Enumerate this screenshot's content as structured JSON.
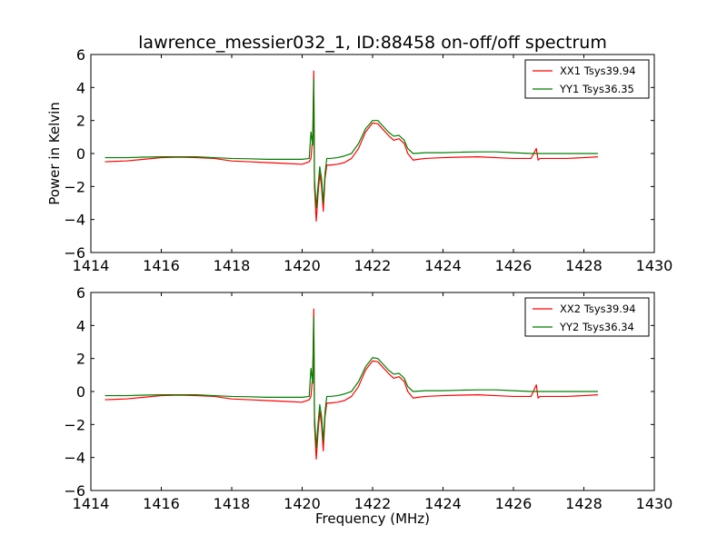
{
  "chart_data": [
    {
      "type": "line",
      "title": "lawrence_messier032_1, ID:88458 on-off/off spectrum",
      "xlabel": "",
      "ylabel": "Power in Kelvin",
      "xlim": [
        1414,
        1430
      ],
      "ylim": [
        -6,
        6
      ],
      "xticks": [
        1414,
        1416,
        1418,
        1420,
        1422,
        1424,
        1426,
        1428,
        1430
      ],
      "yticks": [
        -6,
        -4,
        -2,
        0,
        2,
        4,
        6
      ],
      "grid": false,
      "legend_position": "top-right",
      "series": [
        {
          "name": "XX1 Tsys39.94",
          "color": "#ff0000",
          "x": [
            1414.4,
            1415.0,
            1415.5,
            1416.0,
            1416.5,
            1417.0,
            1417.5,
            1418.0,
            1418.5,
            1419.0,
            1419.5,
            1420.0,
            1420.2,
            1420.25,
            1420.3,
            1420.33,
            1420.35,
            1420.4,
            1420.45,
            1420.5,
            1420.55,
            1420.6,
            1420.65,
            1420.7,
            1420.8,
            1421.0,
            1421.2,
            1421.4,
            1421.6,
            1421.8,
            1422.0,
            1422.15,
            1422.3,
            1422.45,
            1422.6,
            1422.75,
            1422.9,
            1423.0,
            1423.15,
            1423.3,
            1423.5,
            1424.0,
            1424.5,
            1425.0,
            1425.5,
            1426.0,
            1426.5,
            1426.65,
            1426.7,
            1426.75,
            1427.0,
            1427.5,
            1428.0,
            1428.4
          ],
          "y": [
            -0.5,
            -0.45,
            -0.35,
            -0.25,
            -0.22,
            -0.25,
            -0.3,
            -0.45,
            -0.5,
            -0.55,
            -0.6,
            -0.65,
            -0.5,
            -0.3,
            1.0,
            5.0,
            -2.0,
            -4.1,
            -2.5,
            -1.2,
            -2.0,
            -3.5,
            -1.5,
            -0.7,
            -0.7,
            -0.65,
            -0.55,
            -0.3,
            0.3,
            1.3,
            1.85,
            1.8,
            1.45,
            1.1,
            0.8,
            0.9,
            0.6,
            0.0,
            -0.4,
            -0.35,
            -0.3,
            -0.25,
            -0.22,
            -0.2,
            -0.25,
            -0.3,
            -0.3,
            0.3,
            -0.4,
            -0.3,
            -0.3,
            -0.3,
            -0.25,
            -0.2
          ]
        },
        {
          "name": "YY1 Tsys36.35",
          "color": "#007f00",
          "x": [
            1414.4,
            1415.0,
            1415.5,
            1416.0,
            1416.5,
            1417.0,
            1417.5,
            1418.0,
            1418.5,
            1419.0,
            1419.5,
            1420.0,
            1420.2,
            1420.25,
            1420.3,
            1420.33,
            1420.35,
            1420.4,
            1420.45,
            1420.5,
            1420.55,
            1420.6,
            1420.65,
            1420.7,
            1420.8,
            1421.0,
            1421.2,
            1421.4,
            1421.6,
            1421.8,
            1422.0,
            1422.15,
            1422.3,
            1422.45,
            1422.6,
            1422.75,
            1422.9,
            1423.0,
            1423.15,
            1423.3,
            1423.5,
            1424.0,
            1424.5,
            1425.0,
            1425.5,
            1426.0,
            1426.5,
            1426.65,
            1426.7,
            1426.75,
            1427.0,
            1427.5,
            1428.0,
            1428.4
          ],
          "y": [
            -0.25,
            -0.25,
            -0.22,
            -0.2,
            -0.2,
            -0.2,
            -0.25,
            -0.3,
            -0.32,
            -0.35,
            -0.35,
            -0.35,
            -0.3,
            1.3,
            0.5,
            4.5,
            -1.5,
            -3.3,
            -2.0,
            -0.8,
            -1.5,
            -3.0,
            -1.2,
            -0.3,
            -0.3,
            -0.25,
            -0.15,
            0.0,
            0.6,
            1.5,
            2.0,
            2.0,
            1.65,
            1.3,
            1.05,
            1.1,
            0.8,
            0.3,
            0.0,
            0.02,
            0.05,
            0.05,
            0.08,
            0.1,
            0.1,
            0.05,
            0.0,
            0.0,
            0.0,
            0.0,
            0.0,
            0.0,
            0.0,
            0.0
          ]
        }
      ]
    },
    {
      "type": "line",
      "title": "",
      "xlabel": "Frequency (MHz)",
      "ylabel": "",
      "xlim": [
        1414,
        1430
      ],
      "ylim": [
        -6,
        6
      ],
      "xticks": [
        1414,
        1416,
        1418,
        1420,
        1422,
        1424,
        1426,
        1428,
        1430
      ],
      "yticks": [
        -6,
        -4,
        -2,
        0,
        2,
        4,
        6
      ],
      "grid": false,
      "legend_position": "top-right",
      "series": [
        {
          "name": "XX2 Tsys39.94",
          "color": "#ff0000",
          "x": [
            1414.4,
            1415.0,
            1415.5,
            1416.0,
            1416.5,
            1417.0,
            1417.5,
            1418.0,
            1418.5,
            1419.0,
            1419.5,
            1420.0,
            1420.2,
            1420.25,
            1420.3,
            1420.33,
            1420.35,
            1420.4,
            1420.45,
            1420.5,
            1420.55,
            1420.6,
            1420.65,
            1420.7,
            1420.8,
            1421.0,
            1421.2,
            1421.4,
            1421.6,
            1421.8,
            1422.0,
            1422.15,
            1422.3,
            1422.45,
            1422.6,
            1422.75,
            1422.9,
            1423.0,
            1423.15,
            1423.3,
            1423.5,
            1424.0,
            1424.5,
            1425.0,
            1425.5,
            1426.0,
            1426.5,
            1426.65,
            1426.7,
            1426.75,
            1427.0,
            1427.5,
            1428.0,
            1428.4
          ],
          "y": [
            -0.5,
            -0.45,
            -0.35,
            -0.25,
            -0.22,
            -0.25,
            -0.3,
            -0.45,
            -0.5,
            -0.55,
            -0.6,
            -0.65,
            -0.5,
            -0.3,
            1.0,
            5.0,
            -2.0,
            -4.1,
            -2.5,
            -1.2,
            -2.0,
            -3.6,
            -1.5,
            -0.7,
            -0.7,
            -0.65,
            -0.55,
            -0.3,
            0.3,
            1.3,
            1.85,
            1.8,
            1.45,
            1.1,
            0.8,
            0.9,
            0.6,
            0.0,
            -0.4,
            -0.35,
            -0.3,
            -0.25,
            -0.22,
            -0.2,
            -0.25,
            -0.3,
            -0.3,
            0.4,
            -0.4,
            -0.3,
            -0.3,
            -0.3,
            -0.25,
            -0.2
          ]
        },
        {
          "name": "YY2 Tsys36.34",
          "color": "#007f00",
          "x": [
            1414.4,
            1415.0,
            1415.5,
            1416.0,
            1416.5,
            1417.0,
            1417.5,
            1418.0,
            1418.5,
            1419.0,
            1419.5,
            1420.0,
            1420.2,
            1420.25,
            1420.3,
            1420.33,
            1420.35,
            1420.4,
            1420.45,
            1420.5,
            1420.55,
            1420.6,
            1420.65,
            1420.7,
            1420.8,
            1421.0,
            1421.2,
            1421.4,
            1421.6,
            1421.8,
            1422.0,
            1422.15,
            1422.3,
            1422.45,
            1422.6,
            1422.75,
            1422.9,
            1423.0,
            1423.15,
            1423.3,
            1423.5,
            1424.0,
            1424.5,
            1425.0,
            1425.5,
            1426.0,
            1426.5,
            1426.65,
            1426.7,
            1426.75,
            1427.0,
            1427.5,
            1428.0,
            1428.4
          ],
          "y": [
            -0.25,
            -0.25,
            -0.22,
            -0.2,
            -0.2,
            -0.2,
            -0.25,
            -0.3,
            -0.32,
            -0.35,
            -0.35,
            -0.35,
            -0.3,
            1.4,
            0.5,
            4.5,
            -1.5,
            -3.4,
            -2.0,
            -0.8,
            -1.5,
            -3.0,
            -1.2,
            -0.3,
            -0.3,
            -0.25,
            -0.15,
            0.0,
            0.6,
            1.5,
            2.05,
            2.0,
            1.65,
            1.3,
            1.05,
            1.1,
            0.8,
            0.3,
            0.0,
            0.02,
            0.05,
            0.05,
            0.08,
            0.1,
            0.1,
            0.05,
            0.0,
            0.0,
            0.0,
            0.0,
            0.0,
            0.0,
            0.0,
            0.0
          ]
        }
      ]
    }
  ]
}
